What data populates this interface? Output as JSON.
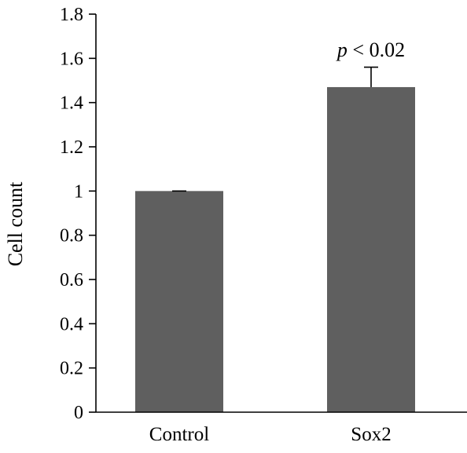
{
  "chart_data": {
    "type": "bar",
    "title": "",
    "xlabel": "",
    "ylabel": "Cell count",
    "categories": [
      "Control",
      "Sox2"
    ],
    "values": [
      1.0,
      1.47
    ],
    "error_upper": [
      0.0,
      0.09
    ],
    "ylim": [
      0,
      1.8
    ],
    "yticks": [
      0,
      0.2,
      0.4,
      0.6,
      0.8,
      1,
      1.2,
      1.4,
      1.6,
      1.8
    ],
    "ytick_labels": [
      "0",
      "0.2",
      "0.4",
      "0.6",
      "0.8",
      "1",
      "1.2",
      "1.4",
      "1.6",
      "1.8"
    ],
    "grid": false,
    "legend": "none",
    "bar_color": "#5f5f5f",
    "annotations": [
      {
        "category": "Sox2",
        "prefix": "p",
        "text": " < 0.02"
      }
    ]
  }
}
